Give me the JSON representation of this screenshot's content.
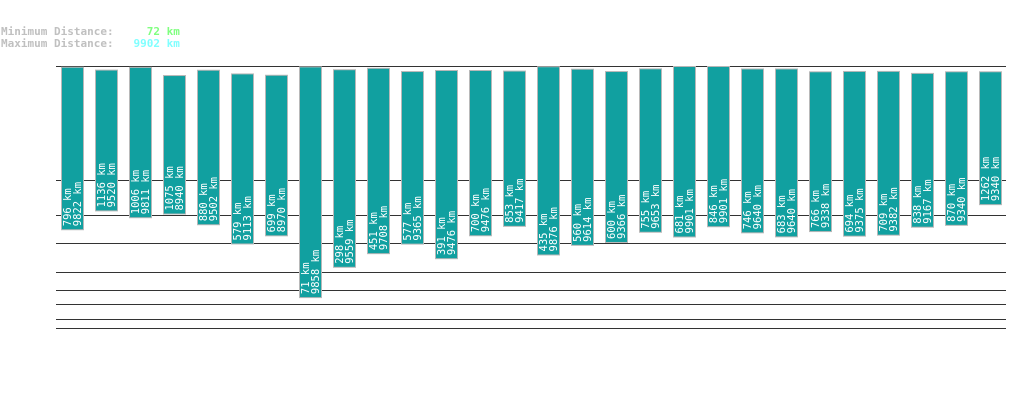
{
  "header": {
    "min_label": "Minimum Distance:",
    "min_value": "72 km",
    "max_label": "Maximum Distance:",
    "max_value": "9902 km"
  },
  "colors": {
    "bar": "#11a0a0",
    "bar_border": "#b8b8b8",
    "grid": "#333333",
    "min_value": "#80ff80",
    "max_value": "#80ffff",
    "label": "#c0c0c0"
  },
  "chart_data": {
    "type": "bar",
    "unit": "km",
    "grid": true,
    "series": [
      {
        "values_min": [
          796,
          1136,
          1006,
          1075,
          880,
          579,
          699,
          71,
          298,
          451,
          577,
          391,
          700,
          853,
          435,
          560,
          600,
          755,
          681,
          846,
          746,
          683,
          766,
          694,
          709,
          838,
          870,
          1262
        ]
      },
      {
        "values_max": [
          9822,
          9520,
          9811,
          8940,
          9502,
          9113,
          8970,
          9858,
          9559,
          9708,
          9365,
          9476,
          9476,
          9417,
          9876,
          9614,
          9366,
          9653,
          9901,
          9901,
          9640,
          9640,
          9338,
          9375,
          9382,
          9167,
          9340,
          9340
        ]
      }
    ]
  }
}
